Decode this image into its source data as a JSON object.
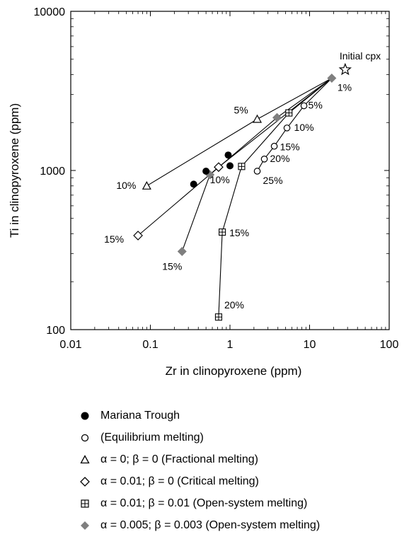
{
  "chart_data": {
    "type": "scatter",
    "title": "",
    "xlabel": "Zr in clinopyroxene (ppm)",
    "ylabel": "Ti in clinopyroxene (ppm)",
    "x_scale": "log",
    "y_scale": "log",
    "xlim": [
      0.01,
      100
    ],
    "ylim": [
      100,
      10000
    ],
    "x_ticks": [
      "0.01",
      "0.1",
      "1",
      "10",
      "100"
    ],
    "y_ticks": [
      "100",
      "1000",
      "10000"
    ],
    "grid": false,
    "initial": {
      "label": "Initial cpx",
      "x": 28,
      "y": 4300
    },
    "series": [
      {
        "name": "Mariana Trough",
        "marker": "filled-circle",
        "points": [
          [
            0.35,
            820
          ],
          [
            0.5,
            990
          ],
          [
            0.95,
            1250
          ],
          [
            1.0,
            1070
          ]
        ]
      },
      {
        "name": "(Equilibrium melting)",
        "marker": "open-circle",
        "points": [
          [
            19,
            3800
          ],
          [
            8.5,
            2550
          ],
          [
            5.2,
            1850
          ],
          [
            3.6,
            1420
          ],
          [
            2.7,
            1180
          ],
          [
            2.2,
            990
          ]
        ],
        "labels": [
          "1%",
          "5%",
          "10%",
          "15%",
          "20%",
          "25%"
        ]
      },
      {
        "name": "α = 0; β = 0 (Fractional melting)",
        "marker": "open-triangle",
        "points": [
          [
            19,
            3800
          ],
          [
            2.2,
            2100
          ],
          [
            0.09,
            800
          ]
        ],
        "labels": [
          "",
          "5%",
          "10%"
        ]
      },
      {
        "name": "α = 0.01; β = 0 (Critical melting)",
        "marker": "open-diamond",
        "points": [
          [
            19,
            3800
          ],
          [
            0.72,
            1050
          ],
          [
            0.07,
            390
          ]
        ],
        "labels": [
          "",
          "",
          "15%"
        ]
      },
      {
        "name": "α = 0.01; β = 0.01 (Open-system melting)",
        "marker": "boxed-plus",
        "points": [
          [
            19,
            3800
          ],
          [
            5.5,
            2300
          ],
          [
            1.4,
            1060
          ],
          [
            0.8,
            410
          ],
          [
            0.72,
            120
          ]
        ],
        "labels": [
          "",
          "",
          "",
          "15%",
          "20%"
        ]
      },
      {
        "name": "α = 0.005; β = 0.003 (Open-system melting)",
        "marker": "gray-diamond",
        "points": [
          [
            19,
            3800
          ],
          [
            3.9,
            2150
          ],
          [
            0.56,
            940
          ],
          [
            0.25,
            310
          ]
        ],
        "labels": [
          "",
          "",
          "10%",
          "15%"
        ]
      }
    ],
    "legend_position": "below"
  },
  "colors": {
    "filled": "#000000",
    "gray_marker": "#7f7f7f",
    "line": "#000000"
  }
}
